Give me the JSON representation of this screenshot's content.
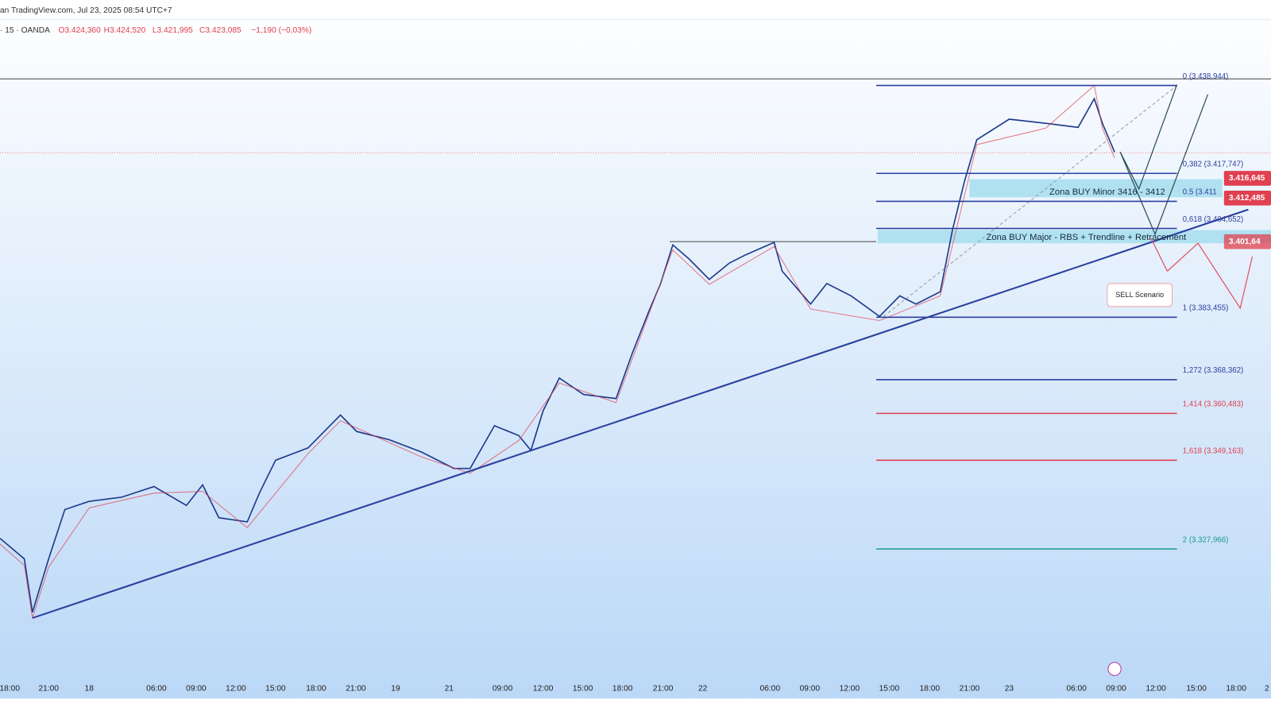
{
  "header": {
    "source": "an TradingView.com, Jul 23, 2025 08:54 UTC+7",
    "symbol": "· 15 · OANDA",
    "ohlc": [
      "O3.424,360",
      "H3.424,520",
      "L3.421,995",
      "C3.423,085",
      "−1,190 (−0,03%)"
    ]
  },
  "fib_levels": [
    "0 (3.438,944)",
    "0,382 (3.417,747)",
    "0.5 (3.411",
    "0,618 (3.404,652)",
    "1 (3.383,455)",
    "1,272 (3.368,362)",
    "1,414 (3.360,483)",
    "1,618 (3.349,163)",
    "2 (3.327,966)"
  ],
  "zones": [
    "Zona BUY Minor 3416 - 3412",
    "Zona BUY Major - RBS + Trendline + Retracement"
  ],
  "price_tags": [
    "3.416,645",
    "3.412,485",
    "3.401,64"
  ],
  "callout": "SELL Scenario",
  "time_axis": [
    "18:00",
    "21:00",
    "18",
    "06:00",
    "09:00",
    "12:00",
    "15:00",
    "18:00",
    "21:00",
    "19",
    "21",
    "09:00",
    "12:00",
    "15:00",
    "18:00",
    "21:00",
    "22",
    "06:00",
    "09:00",
    "12:00",
    "15:00",
    "18:00",
    "21:00",
    "23",
    "06:00",
    "09:00",
    "12:00",
    "15:00",
    "18:00",
    "2"
  ]
}
